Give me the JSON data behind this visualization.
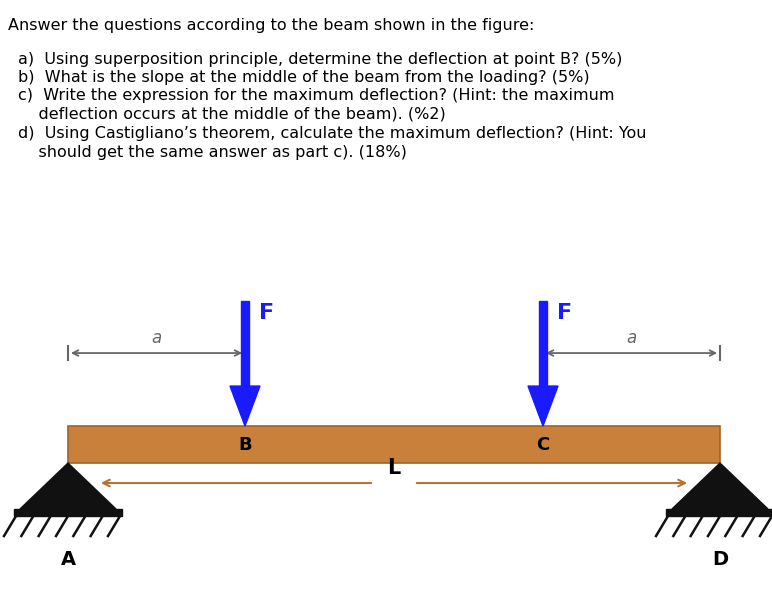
{
  "bg_color": "#ffffff",
  "title_text": "Answer the questions according to the beam shown in the figure:",
  "q_a": "a)  Using superposition principle, determine the deflection at point B? (5%)",
  "q_b": "b)  What is the slope at the middle of the beam from the loading? (5%)",
  "q_c1": "c)  Write the expression for the maximum deflection? (Hint: the maximum",
  "q_c2": "    deflection occurs at the middle of the beam). (%2)",
  "q_d1": "d)  Using Castigliano’s theorem, calculate the maximum deflection? (Hint: You",
  "q_d2": "    should get the same answer as part c). (18%)",
  "beam_color": "#c8803a",
  "beam_edge_color": "#a0622a",
  "force_color": "#1a1aff",
  "arrow_color": "#b87333",
  "support_color": "#111111",
  "dim_line_color": "#666666",
  "label_B": "B",
  "label_C": "C",
  "label_A": "A",
  "label_D": "D",
  "label_F": "F",
  "label_a": "a",
  "label_L": "L",
  "fig_width": 7.72,
  "fig_height": 6.11
}
